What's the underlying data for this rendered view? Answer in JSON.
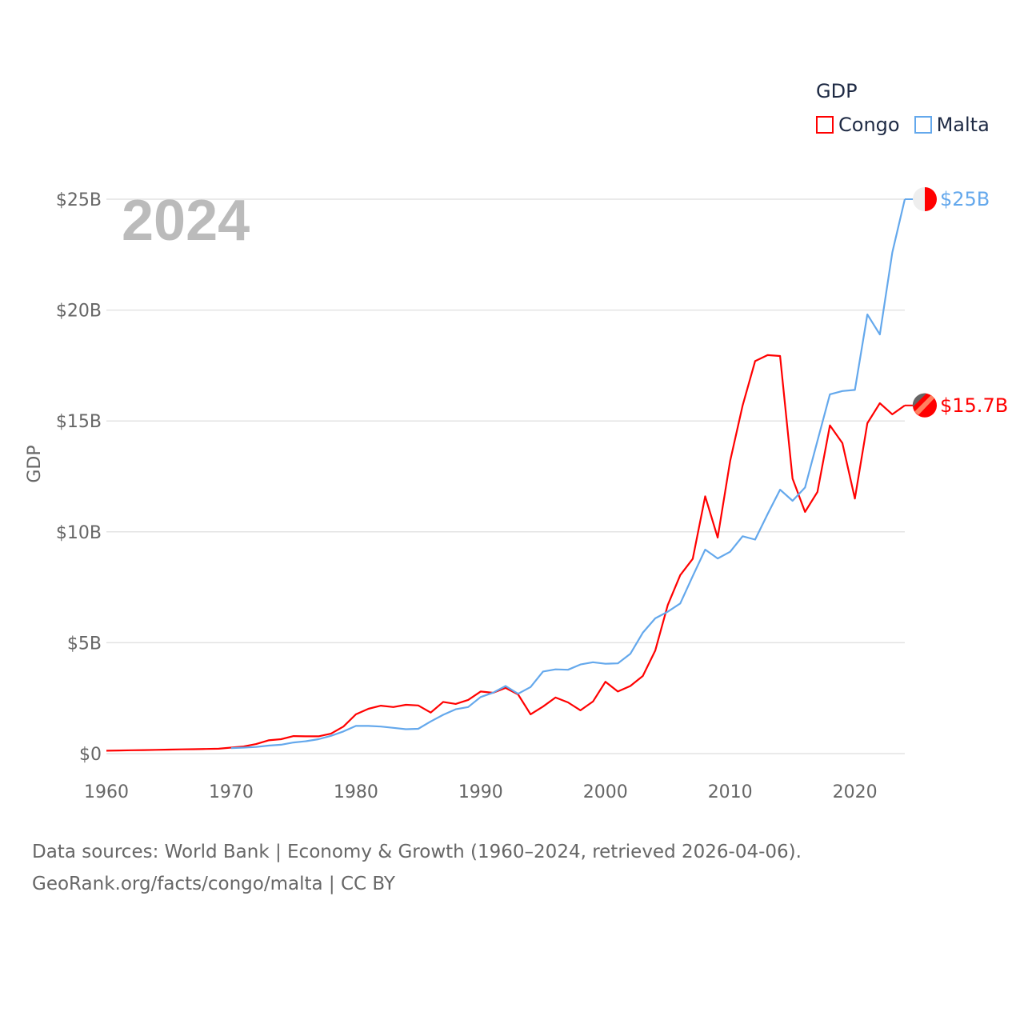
{
  "chart_data": {
    "type": "line",
    "title": "",
    "year_watermark": "2024",
    "xlabel": "",
    "ylabel": "GDP",
    "xlim": [
      1960,
      2024
    ],
    "ylim": [
      0,
      25
    ],
    "x_ticks": [
      "1960",
      "1970",
      "1980",
      "1990",
      "2000",
      "2010",
      "2020"
    ],
    "y_ticks": [
      "$0",
      "$5B",
      "$10B",
      "$15B",
      "$20B",
      "$25B"
    ],
    "y_tick_values": [
      0,
      5,
      10,
      15,
      20,
      25
    ],
    "grid": true,
    "legend": {
      "title": "GDP",
      "placement": "top-right",
      "entries": [
        "Congo",
        "Malta"
      ]
    },
    "series": [
      {
        "name": "Congo",
        "color": "#ff0000",
        "end_label": "$15.7B",
        "start_year": 1960,
        "values": [
          0.13,
          0.14,
          0.15,
          0.16,
          0.17,
          0.18,
          0.19,
          0.2,
          0.21,
          0.22,
          0.27,
          0.32,
          0.43,
          0.6,
          0.65,
          0.79,
          0.78,
          0.78,
          0.9,
          1.22,
          1.77,
          2.02,
          2.16,
          2.1,
          2.2,
          2.17,
          1.85,
          2.33,
          2.24,
          2.42,
          2.8,
          2.74,
          2.96,
          2.67,
          1.77,
          2.12,
          2.53,
          2.31,
          1.95,
          2.35,
          3.24,
          2.8,
          3.05,
          3.5,
          4.65,
          6.7,
          8.05,
          8.78,
          11.6,
          9.74,
          13.2,
          15.7,
          17.7,
          17.97,
          17.93,
          12.4,
          10.9,
          11.8,
          14.8,
          14.0,
          11.5,
          14.9,
          15.8,
          15.3,
          15.7
        ]
      },
      {
        "name": "Malta",
        "color": "#64a8ec",
        "end_label": "$25B",
        "start_year": 1970,
        "values": [
          0.25,
          0.27,
          0.3,
          0.36,
          0.4,
          0.5,
          0.56,
          0.65,
          0.8,
          1.0,
          1.25,
          1.25,
          1.22,
          1.16,
          1.1,
          1.12,
          1.45,
          1.75,
          2.0,
          2.1,
          2.55,
          2.75,
          3.05,
          2.7,
          3.0,
          3.7,
          3.8,
          3.78,
          4.02,
          4.12,
          4.05,
          4.07,
          4.5,
          5.45,
          6.1,
          6.4,
          6.77,
          8.0,
          9.2,
          8.8,
          9.1,
          9.8,
          9.65,
          10.8,
          11.9,
          11.4,
          12.0,
          14.1,
          16.2,
          16.35,
          16.4,
          19.8,
          18.9,
          22.6,
          25.0
        ]
      }
    ]
  },
  "footer": {
    "line1": "Data sources: World Bank | Economy & Growth (1960–2024, retrieved 2026-04-06).",
    "line2": "GeoRank.org/facts/congo/malta | CC BY"
  }
}
